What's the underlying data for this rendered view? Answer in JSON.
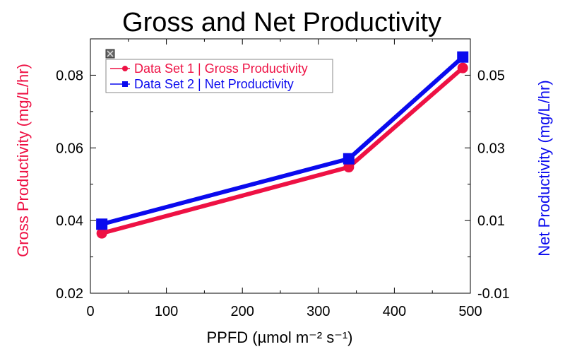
{
  "chart_data": {
    "type": "line",
    "title": "Gross and Net Productivity",
    "xlabel": "PPFD (µmol m⁻² s⁻¹)",
    "ylabel_left": "Gross Productivity (mg/L/hr)",
    "ylabel_right": "Net Productivity (mg/L/hr)",
    "xlim": [
      0,
      500
    ],
    "ylim_left": [
      0.02,
      0.09
    ],
    "ylim_right": [
      -0.01,
      0.06
    ],
    "x_ticks": [
      0,
      100,
      200,
      300,
      400,
      500
    ],
    "x_tick_labels": [
      "0",
      "100",
      "200",
      "300",
      "400",
      "500"
    ],
    "y_left_ticks": [
      0.02,
      0.04,
      0.06,
      0.08
    ],
    "y_left_tick_labels": [
      "0.02",
      "0.04",
      "0.06",
      "0.08"
    ],
    "y_right_ticks": [
      -0.01,
      0.01,
      0.03,
      0.05
    ],
    "y_right_tick_labels": [
      "-0.01",
      "0.01",
      "0.03",
      "0.05"
    ],
    "grid": false,
    "legend_position": "top-left",
    "series": [
      {
        "name": "Data Set 1 | Gross Productivity",
        "axis": "left",
        "marker": "circle",
        "color": "#ee1144",
        "x": [
          15,
          340,
          490
        ],
        "y": [
          0.0365,
          0.0547,
          0.082
        ]
      },
      {
        "name": "Data Set 2 | Net Productivity",
        "axis": "right",
        "marker": "square",
        "color": "#0a0aee",
        "x": [
          15,
          340,
          490
        ],
        "y": [
          0.009,
          0.027,
          0.055
        ]
      }
    ]
  }
}
